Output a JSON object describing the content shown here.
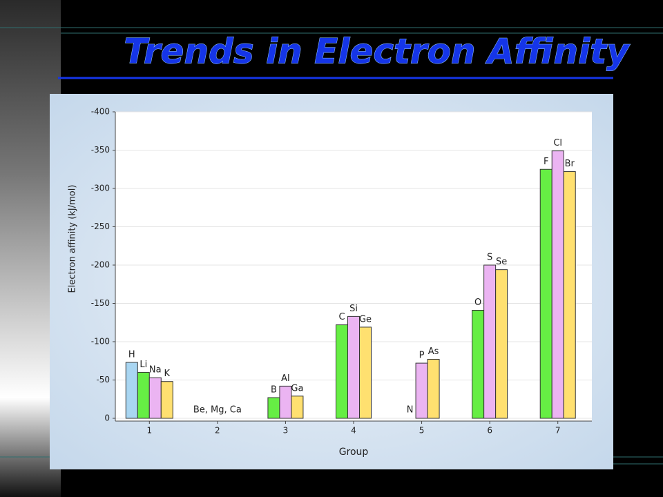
{
  "chart_data": {
    "type": "bar",
    "title": "Trends in Electron Affinity",
    "x_label": "Group",
    "y_label": "Electron affinity (kJ/mol)",
    "categories": [
      "1",
      "2",
      "3",
      "4",
      "5",
      "6",
      "7"
    ],
    "annotation": "Be, Mg, Ca",
    "ylim": [
      0,
      -400
    ],
    "yticks": [
      0,
      -50,
      -100,
      -150,
      -200,
      -250,
      -300,
      -350,
      -400
    ],
    "grid": true,
    "series": [
      {
        "color": "#a9d6f2",
        "values": [
          -73,
          null,
          null,
          null,
          null,
          null,
          null
        ],
        "labels": [
          "H",
          null,
          null,
          null,
          null,
          null,
          null
        ]
      },
      {
        "color": "#66ee44",
        "values": [
          -60,
          null,
          -27,
          -122,
          0,
          -141,
          -325
        ],
        "labels": [
          "Li",
          null,
          "B",
          "C",
          "N",
          "O",
          "F"
        ]
      },
      {
        "color": "#ebb4f2",
        "values": [
          -53,
          null,
          -42,
          -133,
          -72,
          -200,
          -349
        ],
        "labels": [
          "Na",
          null,
          "Al",
          "Si",
          "P",
          "S",
          "Cl"
        ]
      },
      {
        "color": "#ffe070",
        "values": [
          -48,
          null,
          -29,
          -119,
          -77,
          -194,
          -322
        ],
        "labels": [
          "K",
          null,
          "Ga",
          "Ge",
          "As",
          "Se",
          "Br"
        ]
      }
    ]
  }
}
